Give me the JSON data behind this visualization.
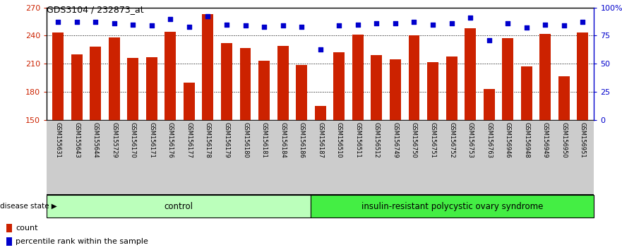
{
  "title": "GDS3104 / 232873_at",
  "samples": [
    "GSM155631",
    "GSM155643",
    "GSM155644",
    "GSM155729",
    "GSM156170",
    "GSM156171",
    "GSM156176",
    "GSM156177",
    "GSM156178",
    "GSM156179",
    "GSM156180",
    "GSM156181",
    "GSM156184",
    "GSM156186",
    "GSM156187",
    "GSM156510",
    "GSM156511",
    "GSM156512",
    "GSM156749",
    "GSM156750",
    "GSM156751",
    "GSM156752",
    "GSM156753",
    "GSM156763",
    "GSM156946",
    "GSM156948",
    "GSM156949",
    "GSM156950",
    "GSM156951"
  ],
  "bar_values": [
    243,
    220,
    228,
    238,
    216,
    217,
    244,
    190,
    263,
    232,
    227,
    213,
    229,
    209,
    165,
    222,
    241,
    219,
    215,
    240,
    212,
    218,
    248,
    183,
    237,
    207,
    242,
    197,
    243
  ],
  "percentile_values": [
    87,
    87,
    87,
    86,
    85,
    84,
    90,
    83,
    92,
    85,
    84,
    83,
    84,
    83,
    63,
    84,
    85,
    86,
    86,
    87,
    85,
    86,
    91,
    71,
    86,
    82,
    85,
    84,
    87
  ],
  "control_count": 14,
  "ylim_left": [
    150,
    270
  ],
  "ylim_right": [
    0,
    100
  ],
  "yticks_left": [
    150,
    180,
    210,
    240,
    270
  ],
  "yticks_right": [
    0,
    25,
    50,
    75,
    100
  ],
  "ytick_right_labels": [
    "0",
    "25",
    "50",
    "75",
    "100%"
  ],
  "bar_color": "#cc2200",
  "dot_color": "#0000cc",
  "control_color": "#bbffbb",
  "disease_color": "#44ee44",
  "xlabel_bg_color": "#cccccc",
  "group1_label": "control",
  "group2_label": "insulin-resistant polycystic ovary syndrome",
  "disease_state_label": "disease state",
  "legend_count_label": "count",
  "legend_pct_label": "percentile rank within the sample"
}
